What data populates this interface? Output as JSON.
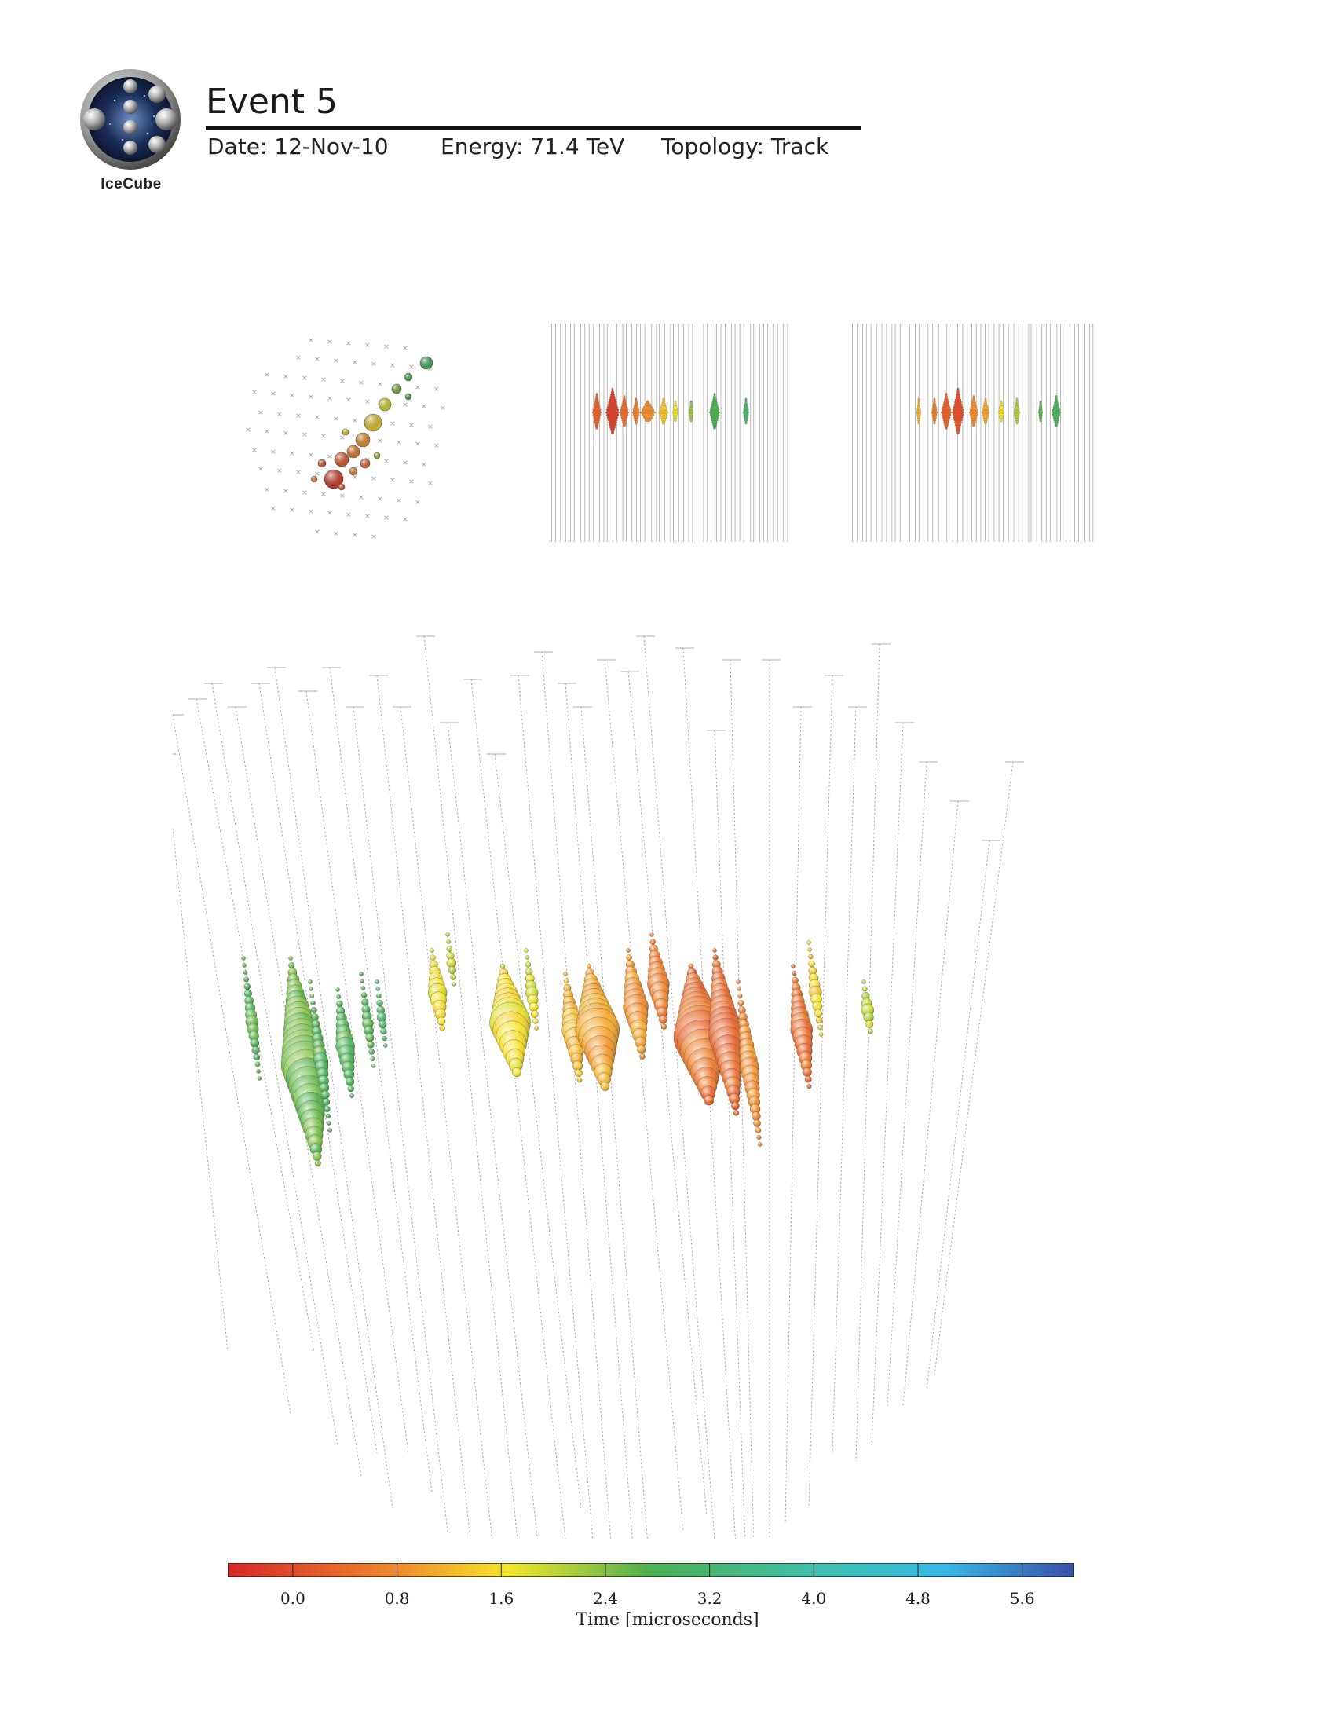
{
  "header": {
    "logo_text": "IceCube",
    "title": "Event 5",
    "date": "Date: 12-Nov-10",
    "energy": "Energy: 71.4 TeV",
    "topology": "Topology: Track"
  },
  "colorbar": {
    "label": "Time [microseconds]",
    "ticks": [
      "0.0",
      "0.8",
      "1.6",
      "2.4",
      "3.2",
      "4.0",
      "4.8",
      "5.6"
    ],
    "tick_values": [
      0.0,
      0.8,
      1.6,
      2.4,
      3.2,
      4.0,
      4.8,
      5.6
    ],
    "range": [
      -0.5,
      6.0
    ],
    "colors": [
      "#d62728",
      "#f08a2c",
      "#f5e62a",
      "#4caf50",
      "#37b8e6",
      "#3b4fa8"
    ]
  }
}
